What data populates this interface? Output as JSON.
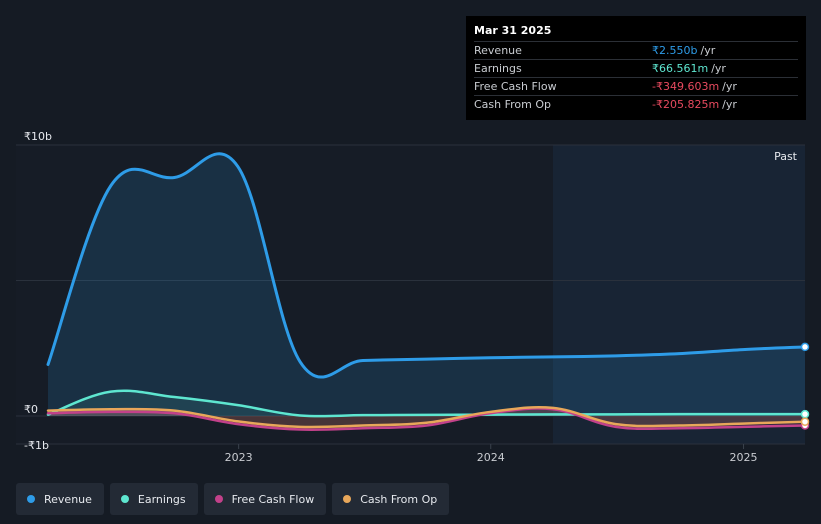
{
  "tooltip": {
    "date": "Mar 31 2025",
    "rows": [
      {
        "label": "Revenue",
        "value": "₹2.550b",
        "unit": "/yr",
        "color": "#2e9ce8"
      },
      {
        "label": "Earnings",
        "value": "₹66.561m",
        "unit": "/yr",
        "color": "#5ee6d0"
      },
      {
        "label": "Free Cash Flow",
        "value": "-₹349.603m",
        "unit": "/yr",
        "color": "#e84a5f"
      },
      {
        "label": "Cash From Op",
        "value": "-₹205.825m",
        "unit": "/yr",
        "color": "#e84a5f"
      }
    ]
  },
  "legend": [
    {
      "label": "Revenue",
      "color": "#2e9ce8"
    },
    {
      "label": "Earnings",
      "color": "#5ee6d0"
    },
    {
      "label": "Free Cash Flow",
      "color": "#c2418a"
    },
    {
      "label": "Cash From Op",
      "color": "#e8a75a"
    }
  ],
  "chart_data": {
    "type": "area",
    "x_tick_labels": [
      "2023",
      "2024",
      "2025"
    ],
    "y_tick_labels": [
      "₹10b",
      "₹0",
      "-₹1b"
    ],
    "ylim": [
      -1,
      10
    ],
    "past_label": "Past",
    "x": [
      "2022-03-31",
      "2022-06-30",
      "2022-09-30",
      "2022-12-31",
      "2023-03-31",
      "2023-06-30",
      "2023-09-30",
      "2023-12-31",
      "2024-03-31",
      "2024-06-30",
      "2024-09-30",
      "2024-12-31",
      "2025-03-31"
    ],
    "series": [
      {
        "name": "Revenue",
        "color": "#2e9ce8",
        "values": [
          1.9,
          8.5,
          8.8,
          9.2,
          2.0,
          2.05,
          2.1,
          2.15,
          2.18,
          2.22,
          2.3,
          2.45,
          2.55
        ]
      },
      {
        "name": "Earnings",
        "color": "#5ee6d0",
        "values": [
          0.05,
          0.9,
          0.7,
          0.4,
          0.02,
          0.03,
          0.04,
          0.05,
          0.06,
          0.06,
          0.07,
          0.07,
          0.067
        ]
      },
      {
        "name": "Free Cash Flow",
        "color": "#c2418a",
        "values": [
          0.1,
          0.15,
          0.1,
          -0.3,
          -0.5,
          -0.45,
          -0.35,
          0.1,
          0.25,
          -0.4,
          -0.45,
          -0.4,
          -0.35
        ]
      },
      {
        "name": "Cash From Op",
        "color": "#e8a75a",
        "values": [
          0.2,
          0.25,
          0.2,
          -0.2,
          -0.4,
          -0.35,
          -0.25,
          0.15,
          0.3,
          -0.3,
          -0.35,
          -0.28,
          -0.21
        ]
      }
    ]
  }
}
